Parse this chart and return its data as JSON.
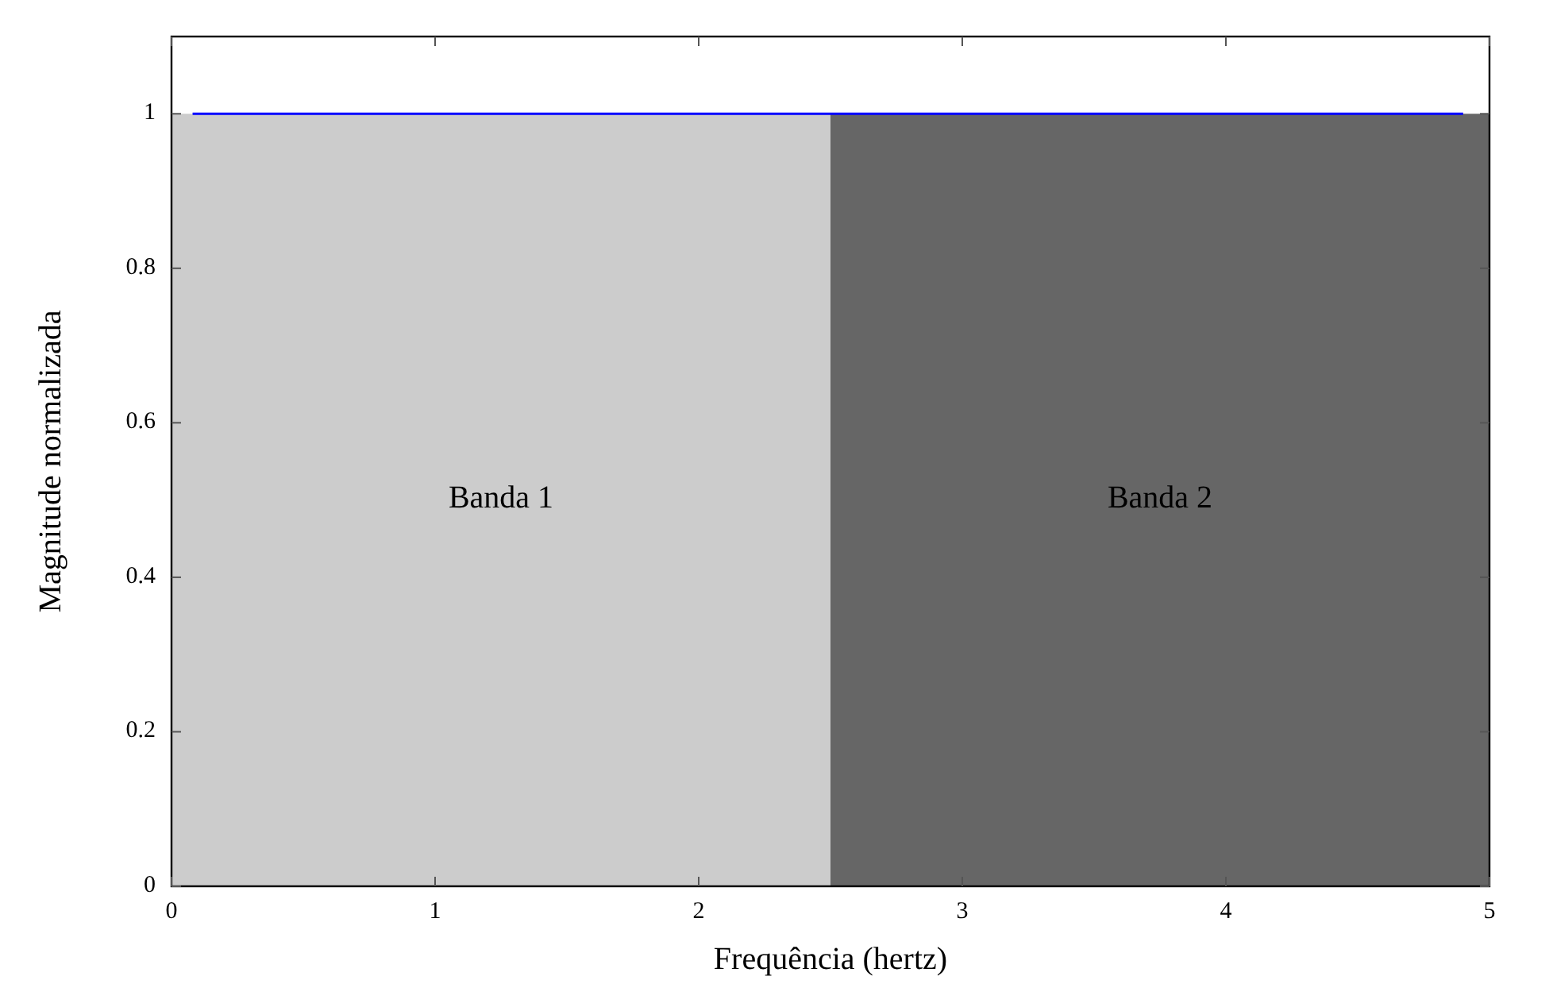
{
  "chart_data": {
    "type": "area",
    "xlabel": "Frequência (hertz)",
    "ylabel": "Magnitude normalizada",
    "series": [
      {
        "name": "Banda 1",
        "color": "#cccccc",
        "x": [
          0,
          2.5
        ],
        "values": [
          1,
          1
        ]
      },
      {
        "name": "Banda 2",
        "color": "#666666",
        "x": [
          2.5,
          5
        ],
        "values": [
          1,
          1
        ]
      },
      {
        "type": "line",
        "color": "#0000ff",
        "x": [
          0.08,
          4.9
        ],
        "values": [
          1,
          1
        ]
      }
    ],
    "xlim": [
      0,
      5
    ],
    "xticks": [
      0,
      1,
      2,
      3,
      4,
      5
    ],
    "ylim": [
      0,
      1.1
    ],
    "yticks": [
      0,
      0.2,
      0.4,
      0.6,
      0.8,
      1
    ],
    "grid": false
  }
}
